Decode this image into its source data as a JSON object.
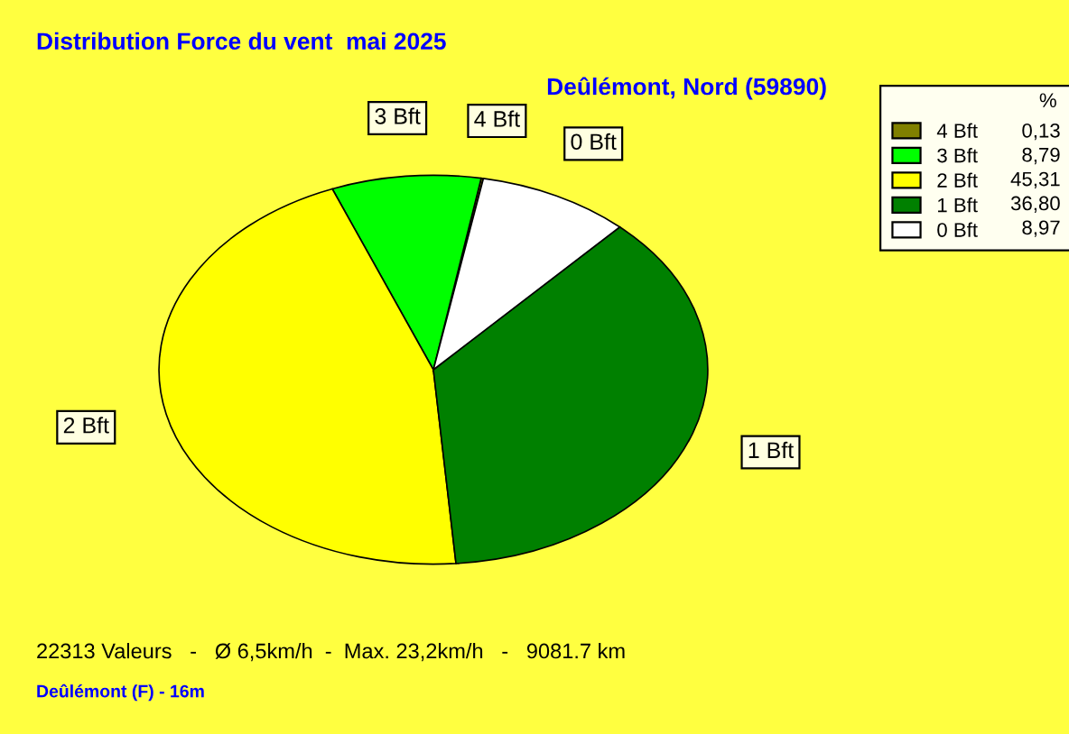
{
  "chart_data": {
    "type": "pie",
    "title": "Distribution Force du vent  mai 2025",
    "subtitle": "Deûlémont, Nord (59890)",
    "categories": [
      "4 Bft",
      "3 Bft",
      "2 Bft",
      "1 Bft",
      "0 Bft"
    ],
    "values": [
      0.13,
      8.79,
      45.31,
      36.8,
      8.97
    ],
    "value_labels": [
      "0,13",
      "8,79",
      "45,31",
      "36,80",
      "8,97"
    ],
    "colors": [
      "#808000",
      "#00ff00",
      "#ffff00",
      "#008000",
      "#ffffff"
    ],
    "legend": "right",
    "legend_title": "%",
    "annotations": [
      "22313 Valeurs   -   Ø 6,5km/h  -  Max. 23,2km/h   -   9081.7 km",
      "Deûlémont (F) - 16m"
    ]
  }
}
